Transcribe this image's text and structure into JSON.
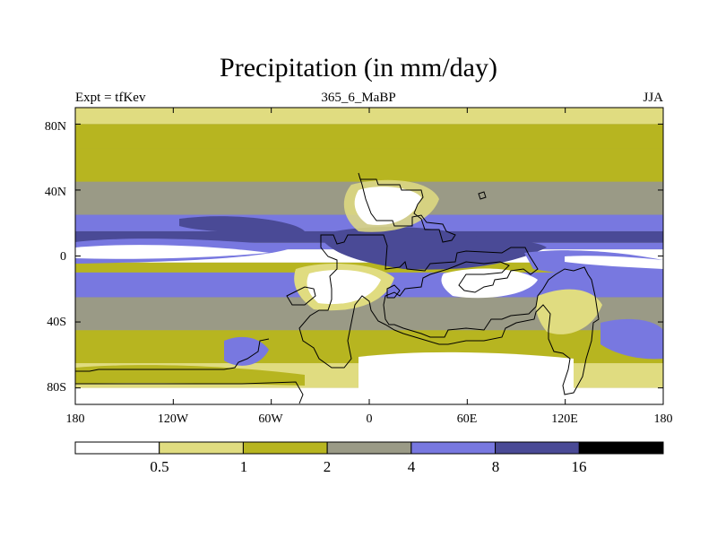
{
  "title": "Precipitation (in mm/day)",
  "subtitle_left": "Expt = tfKev",
  "subtitle_center": "365_6_MaBP",
  "subtitle_right": "JJA",
  "y_ticks": [
    "80N",
    "40N",
    "0",
    "40S",
    "80S"
  ],
  "x_ticks": [
    "180",
    "120W",
    "60W",
    "0",
    "60E",
    "120E",
    "180"
  ],
  "colorbar": {
    "levels": [
      "0.5",
      "1",
      "2",
      "4",
      "8",
      "16"
    ],
    "colors": [
      "#ffffff",
      "#e0dc80",
      "#b7b520",
      "#9a9a86",
      "#7878e0",
      "#4a4a96",
      "#000000"
    ]
  },
  "chart_data": {
    "type": "heatmap",
    "title": "Precipitation (in mm/day)",
    "xlim": [
      -180,
      180
    ],
    "ylim": [
      -90,
      90
    ],
    "x_ticks": [
      -180,
      -120,
      -60,
      0,
      60,
      120,
      180
    ],
    "y_ticks": [
      80,
      40,
      0,
      -40,
      -80
    ],
    "bands": [
      {
        "lat": [
          80,
          90
        ],
        "class": 1
      },
      {
        "lat": [
          65,
          80
        ],
        "class": 2
      },
      {
        "lat": [
          45,
          65
        ],
        "class": 2
      },
      {
        "lat": [
          25,
          45
        ],
        "class": 3
      },
      {
        "lat": [
          15,
          25
        ],
        "class": 4
      },
      {
        "lat": [
          8,
          15
        ],
        "class": 5
      },
      {
        "lat": [
          4,
          8
        ],
        "class": 4
      },
      {
        "lat": [
          -4,
          4
        ],
        "class": 0
      },
      {
        "lat": [
          -10,
          -4
        ],
        "class": 2
      },
      {
        "lat": [
          -25,
          -10
        ],
        "class": 4
      },
      {
        "lat": [
          -45,
          -25
        ],
        "class": 3
      },
      {
        "lat": [
          -65,
          -45
        ],
        "class": 2
      },
      {
        "lat": [
          -80,
          -65
        ],
        "class": 1
      },
      {
        "lat": [
          -90,
          -80
        ],
        "class": 0
      }
    ]
  }
}
